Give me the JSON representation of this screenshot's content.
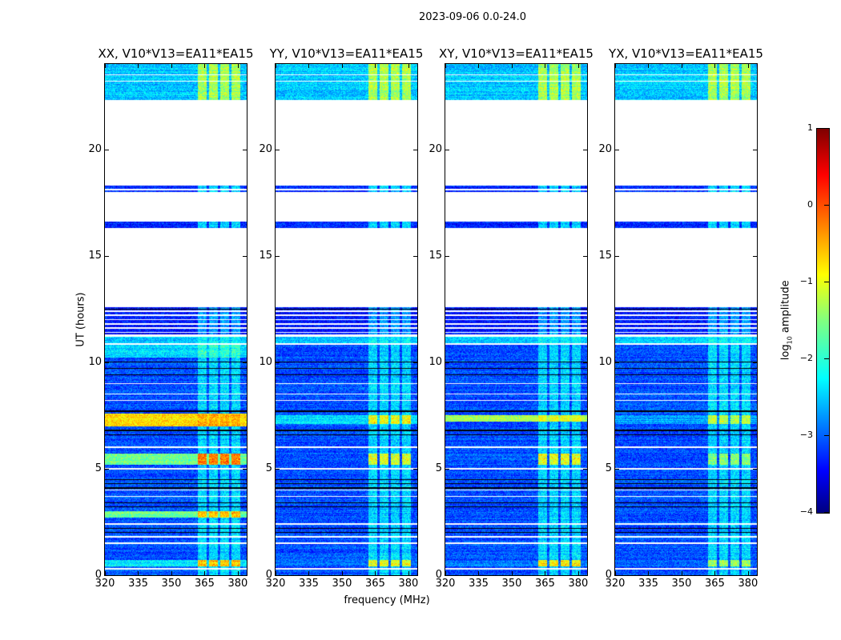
{
  "chart_data": {
    "type": "heatmap",
    "title": "2023-09-06 0.0-24.0",
    "xlabel": "frequency (MHz)",
    "ylabel": "UT (hours)",
    "xlim": [
      320,
      384
    ],
    "ylim": [
      0,
      24
    ],
    "xticks": [
      "320",
      "335",
      "350",
      "365",
      "380"
    ],
    "xtick_values": [
      320,
      335,
      350,
      365,
      380
    ],
    "yticks": [
      "0",
      "5",
      "10",
      "15",
      "20"
    ],
    "ytick_values": [
      0,
      5,
      10,
      15,
      20
    ],
    "colorbar": {
      "label_main": "log",
      "label_sub": "10",
      "label_tail": " amplitude",
      "range": [
        -4,
        1
      ],
      "ticks": [
        "1",
        "0",
        "−1",
        "−2",
        "−3",
        "−4"
      ],
      "tick_values": [
        1,
        0,
        -1,
        -2,
        -3,
        -4
      ],
      "colormap": "jet"
    },
    "rfi_bands_mhz": [
      [
        362,
        366
      ],
      [
        367,
        371
      ],
      [
        372,
        376
      ],
      [
        377,
        381
      ]
    ],
    "common_segments": [
      {
        "t": [
          22.3,
          24.0
        ],
        "level": -2.4,
        "rfi": 1.3
      },
      {
        "t": [
          18.0,
          18.3
        ],
        "level": -3.2,
        "rfi": 1.0
      },
      {
        "t": [
          16.3,
          16.6
        ],
        "level": -3.2,
        "rfi": 1.0
      },
      {
        "t": [
          11.3,
          12.6
        ],
        "level": -3.3,
        "rfi": 0.8
      },
      {
        "t": [
          10.9,
          11.2
        ],
        "level": -2.4,
        "rfi": 0.3
      },
      {
        "t": [
          0.0,
          10.8
        ],
        "level": -3.0,
        "rfi": 0.8
      }
    ],
    "flagged_white_hours": [
      23.2,
      23.5,
      18.1,
      12.4,
      12.2,
      12.0,
      11.8,
      11.6,
      11.4,
      9.0,
      8.5,
      8.2,
      6.0,
      5.0,
      4.0,
      3.7,
      2.4,
      1.8,
      1.5,
      0.3
    ],
    "dropout_black_hours": [
      12.6,
      12.5,
      10.85,
      10.0,
      9.7,
      9.4,
      7.7,
      6.8,
      6.6,
      4.5,
      4.3,
      4.1,
      3.4,
      3.2,
      2.2,
      2.0
    ],
    "panels": [
      {
        "name": "XX",
        "title": "XX, V10*V13=EA11*EA15",
        "bright": [
          {
            "t": [
              7.0,
              7.6
            ],
            "level": -0.7,
            "rfi": 0.3
          },
          {
            "t": [
              5.2,
              5.7
            ],
            "level": -1.6,
            "rfi": 1.6
          },
          {
            "t": [
              2.7,
              3.0
            ],
            "level": -1.6,
            "rfi": 1.2
          },
          {
            "t": [
              0.4,
              0.7
            ],
            "level": -2.2,
            "rfi": 1.9
          },
          {
            "t": [
              10.2,
              10.8
            ],
            "level": -2.3,
            "rfi": 0.5
          }
        ]
      },
      {
        "name": "YY",
        "title": "YY, V10*V13=EA11*EA15",
        "bright": [
          {
            "t": [
              7.1,
              7.5
            ],
            "level": -2.3,
            "rfi": 1.6
          },
          {
            "t": [
              5.2,
              5.7
            ],
            "level": -3.0,
            "rfi": 2.3
          },
          {
            "t": [
              0.4,
              0.7
            ],
            "level": -2.8,
            "rfi": 2.2
          }
        ]
      },
      {
        "name": "XY",
        "title": "XY, V10*V13=EA11*EA15",
        "bright": [
          {
            "t": [
              7.2,
              7.5
            ],
            "level": -1.3,
            "rfi": 0.4
          },
          {
            "t": [
              5.2,
              5.7
            ],
            "level": -2.9,
            "rfi": 2.3
          },
          {
            "t": [
              0.4,
              0.7
            ],
            "level": -2.8,
            "rfi": 2.3
          }
        ]
      },
      {
        "name": "YX",
        "title": "YX, V10*V13=EA11*EA15",
        "bright": [
          {
            "t": [
              7.1,
              7.5
            ],
            "level": -2.6,
            "rfi": 1.6
          },
          {
            "t": [
              5.2,
              5.7
            ],
            "level": -3.0,
            "rfi": 1.8
          },
          {
            "t": [
              0.4,
              0.7
            ],
            "level": -2.9,
            "rfi": 1.8
          }
        ]
      }
    ]
  }
}
